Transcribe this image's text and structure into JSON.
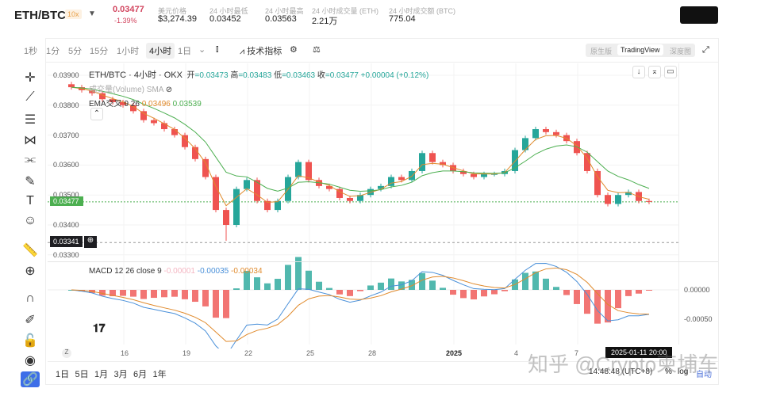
{
  "header": {
    "pair": "ETH/BTC",
    "leverage": "10x",
    "price": "0.03477",
    "change": "-1.39%",
    "stats": [
      {
        "label": "美元价格",
        "value": "$3,274.39"
      },
      {
        "label": "24 小时最低",
        "value": "0.03452"
      },
      {
        "label": "24 小时最高",
        "value": "0.03563"
      },
      {
        "label": "24 小时成交量 (ETH)",
        "value": "2.21万"
      },
      {
        "label": "24 小时成交额 (BTC)",
        "value": "775.04"
      }
    ]
  },
  "toolbar": {
    "intervals": [
      "1秒",
      "1分",
      "5分",
      "15分",
      "1小时",
      "4小时",
      "1日"
    ],
    "active": "4小时",
    "indicators": "技术指标",
    "views": [
      "原生版",
      "TradingView",
      "深度图"
    ],
    "active_view": "TradingView"
  },
  "legend": {
    "title": "ETH/BTC · 4小时 · OKX",
    "o_label": "开",
    "o": "=0.03473",
    "h_label": "高",
    "h": "=0.03483",
    "l_label": "低",
    "l": "=0.03463",
    "c_label": "收",
    "c": "=0.03477",
    "chg": "+0.00004 (+0.12%)",
    "volume": "成交量(Volume) SMA",
    "ema": "EMA交叉 9 26",
    "ema1": "0.03496",
    "ema2": "0.03539",
    "macd": "MACD 12 26 close 9",
    "macd_hist": "-0.00001",
    "macd_line": "-0.00035",
    "macd_signal": "-0.00034"
  },
  "price_axis": [
    "0.03900",
    "0.03800",
    "0.03700",
    "0.03600",
    "0.03500",
    "0.03400",
    "0.03300"
  ],
  "last_price_tag": "0.03477",
  "crosshair_price": "0.03341",
  "macd_axis": [
    "0.00000",
    "-0.00050"
  ],
  "time_axis": [
    "16",
    "19",
    "22",
    "25",
    "28",
    "2025",
    "4",
    "7"
  ],
  "crosshair_time": "2025-01-11 20:00",
  "ranges": [
    "1日",
    "5日",
    "1月",
    "3月",
    "6月",
    "1年"
  ],
  "footer": {
    "clock": "14:48:48 (UTC+8)",
    "pct": "%",
    "log": "log",
    "auto": "自动"
  },
  "watermark": "知乎 @Crypto柬埔车",
  "colors": {
    "up": "#26a69a",
    "down": "#ef5350",
    "ema_fast": "#e08a2c",
    "ema_slow": "#4caf50",
    "macd": "#4a90d9"
  },
  "chart_data": {
    "type": "candlestick",
    "interval": "12h approx",
    "closes": [
      0.0386,
      0.0385,
      0.0384,
      0.0382,
      0.0381,
      0.038,
      0.0378,
      0.0375,
      0.0374,
      0.0372,
      0.037,
      0.0366,
      0.0362,
      0.0356,
      0.0345,
      0.034,
      0.0352,
      0.0355,
      0.0348,
      0.0345,
      0.0348,
      0.0356,
      0.0361,
      0.0355,
      0.0353,
      0.0352,
      0.0349,
      0.0348,
      0.035,
      0.0352,
      0.0353,
      0.0356,
      0.0355,
      0.0358,
      0.0364,
      0.0361,
      0.036,
      0.0358,
      0.0357,
      0.0356,
      0.0357,
      0.0357,
      0.0358,
      0.0365,
      0.0369,
      0.0372,
      0.0371,
      0.037,
      0.0368,
      0.0364,
      0.0358,
      0.035,
      0.0347,
      0.035,
      0.0351,
      0.0348,
      0.03477
    ],
    "ylim": [
      0.0329,
      0.0392
    ]
  }
}
